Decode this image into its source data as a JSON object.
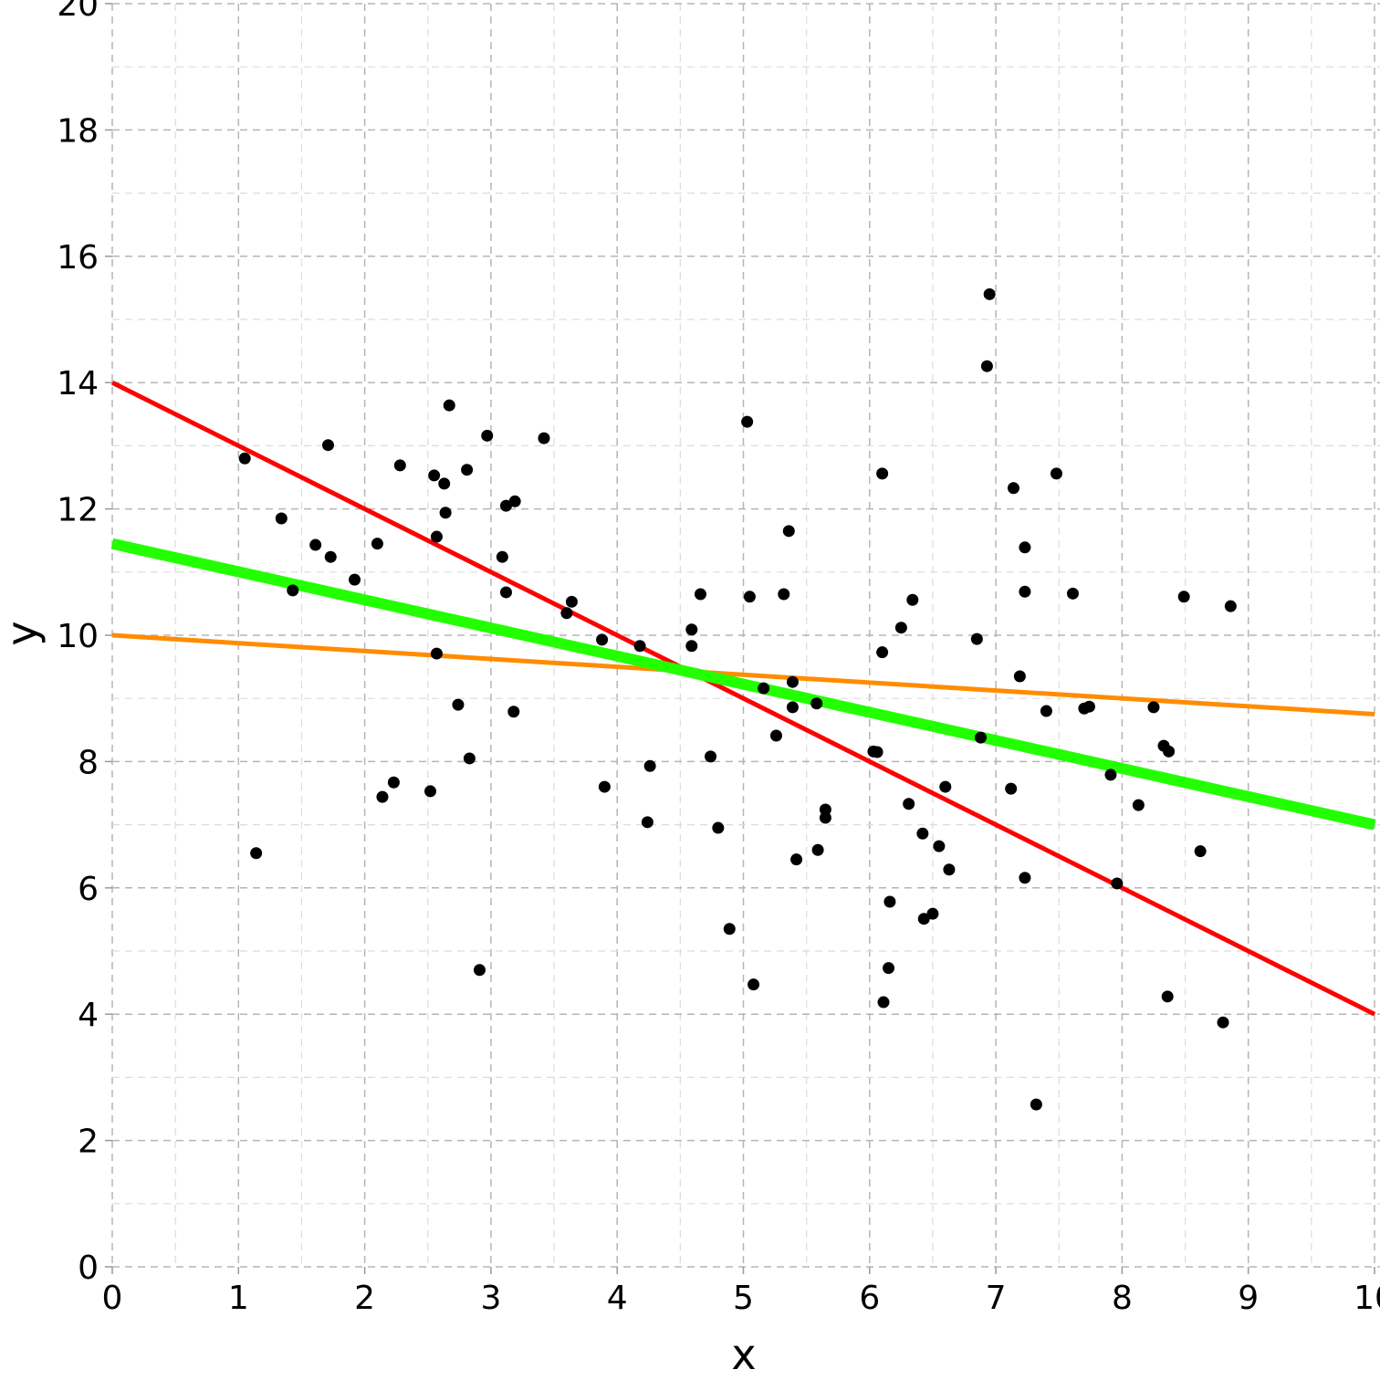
{
  "chart_data": {
    "type": "scatter",
    "title": "",
    "xlabel": "x",
    "ylabel": "y",
    "xlim": [
      0,
      10
    ],
    "ylim": [
      0,
      20
    ],
    "xticks": [
      "0",
      "1",
      "2",
      "3",
      "4",
      "5",
      "6",
      "7",
      "8",
      "9",
      "10"
    ],
    "yticks": [
      "0",
      "2",
      "4",
      "6",
      "8",
      "10",
      "12",
      "14",
      "16",
      "18",
      "20"
    ],
    "grid": true,
    "points": [
      [
        1.05,
        12.8
      ],
      [
        1.14,
        6.55
      ],
      [
        1.34,
        11.85
      ],
      [
        1.43,
        10.71
      ],
      [
        1.61,
        11.43
      ],
      [
        1.71,
        13.01
      ],
      [
        1.73,
        11.24
      ],
      [
        1.92,
        10.88
      ],
      [
        2.1,
        11.45
      ],
      [
        2.14,
        7.44
      ],
      [
        2.23,
        7.67
      ],
      [
        2.28,
        12.69
      ],
      [
        2.52,
        7.53
      ],
      [
        2.55,
        12.53
      ],
      [
        2.57,
        11.56
      ],
      [
        2.57,
        9.71
      ],
      [
        2.63,
        12.4
      ],
      [
        2.64,
        11.94
      ],
      [
        2.67,
        13.64
      ],
      [
        2.74,
        8.9
      ],
      [
        2.81,
        12.62
      ],
      [
        2.83,
        8.05
      ],
      [
        2.91,
        4.7
      ],
      [
        2.97,
        13.16
      ],
      [
        3.09,
        11.24
      ],
      [
        3.12,
        12.05
      ],
      [
        3.12,
        10.68
      ],
      [
        3.19,
        12.12
      ],
      [
        3.18,
        8.79
      ],
      [
        3.42,
        13.12
      ],
      [
        3.6,
        10.35
      ],
      [
        3.64,
        10.53
      ],
      [
        3.88,
        9.93
      ],
      [
        3.9,
        7.6
      ],
      [
        4.18,
        9.83
      ],
      [
        4.24,
        7.04
      ],
      [
        4.26,
        7.93
      ],
      [
        4.59,
        10.09
      ],
      [
        4.59,
        9.83
      ],
      [
        4.66,
        10.65
      ],
      [
        4.74,
        8.08
      ],
      [
        4.8,
        6.95
      ],
      [
        4.89,
        5.35
      ],
      [
        5.03,
        13.38
      ],
      [
        5.05,
        10.61
      ],
      [
        5.08,
        4.47
      ],
      [
        5.16,
        9.16
      ],
      [
        5.26,
        8.41
      ],
      [
        5.32,
        10.65
      ],
      [
        5.36,
        11.65
      ],
      [
        5.39,
        9.26
      ],
      [
        5.39,
        8.86
      ],
      [
        5.42,
        6.45
      ],
      [
        5.58,
        8.92
      ],
      [
        5.59,
        6.6
      ],
      [
        5.65,
        7.24
      ],
      [
        5.65,
        7.11
      ],
      [
        6.03,
        8.16
      ],
      [
        6.06,
        8.15
      ],
      [
        6.1,
        9.73
      ],
      [
        6.1,
        12.56
      ],
      [
        6.11,
        4.19
      ],
      [
        6.15,
        4.73
      ],
      [
        6.16,
        5.78
      ],
      [
        6.25,
        10.12
      ],
      [
        6.31,
        7.33
      ],
      [
        6.34,
        10.56
      ],
      [
        6.42,
        6.86
      ],
      [
        6.43,
        5.51
      ],
      [
        6.5,
        5.59
      ],
      [
        6.55,
        6.66
      ],
      [
        6.6,
        7.6
      ],
      [
        6.63,
        6.29
      ],
      [
        6.85,
        9.94
      ],
      [
        6.88,
        8.38
      ],
      [
        6.93,
        14.26
      ],
      [
        6.95,
        15.4
      ],
      [
        7.12,
        7.57
      ],
      [
        7.14,
        12.33
      ],
      [
        7.19,
        9.35
      ],
      [
        7.23,
        11.39
      ],
      [
        7.23,
        10.69
      ],
      [
        7.23,
        6.16
      ],
      [
        7.32,
        2.57
      ],
      [
        7.4,
        8.8
      ],
      [
        7.48,
        12.56
      ],
      [
        7.61,
        10.66
      ],
      [
        7.7,
        8.84
      ],
      [
        7.74,
        8.87
      ],
      [
        7.91,
        7.79
      ],
      [
        7.96,
        6.07
      ],
      [
        8.13,
        7.31
      ],
      [
        8.25,
        8.86
      ],
      [
        8.33,
        8.25
      ],
      [
        8.37,
        8.16
      ],
      [
        8.36,
        4.28
      ],
      [
        8.49,
        10.61
      ],
      [
        8.62,
        6.58
      ],
      [
        8.8,
        3.87
      ],
      [
        8.86,
        10.46
      ]
    ],
    "point_color": "#000000",
    "lines": [
      {
        "color": "#ff0000",
        "intercept": 14.0,
        "slope": -1.0,
        "width": "medium"
      },
      {
        "color": "#ff8c00",
        "intercept": 10.0,
        "slope": -0.125,
        "width": "medium"
      },
      {
        "color": "#22ff00",
        "intercept": 11.45,
        "slope": -0.445,
        "width": "thick"
      }
    ]
  }
}
